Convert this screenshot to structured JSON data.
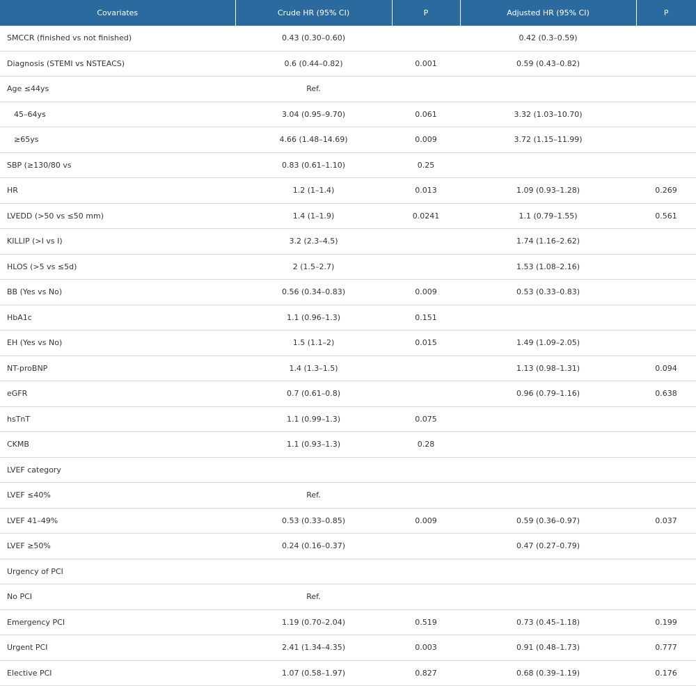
{
  "header": {
    "covariates": "Covariates",
    "crude": "Crude HR (95% CI)",
    "p1": "P",
    "adjusted": "Adjusted HR (95% CI)",
    "p2": "P"
  },
  "rows": [
    {
      "label": "SMCCR (finished vs not finished)",
      "crude": "0.43 (0.30–0.60)",
      "p1": "",
      "adjusted": "0.42 (0.3–0.59)",
      "p2": "",
      "indent": false
    },
    {
      "label": "Diagnosis (STEMI vs NSTEACS)",
      "crude": "0.6 (0.44–0.82)",
      "p1": "0.001",
      "adjusted": "0.59 (0.43–0.82)",
      "p2": "",
      "indent": false
    },
    {
      "label": "Age ≤44ys",
      "crude": "Ref.",
      "p1": "",
      "adjusted": "",
      "p2": "",
      "indent": false
    },
    {
      "label": "45–64ys",
      "crude": "3.04 (0.95–9.70)",
      "p1": "0.061",
      "adjusted": "3.32 (1.03–10.70)",
      "p2": "",
      "indent": true
    },
    {
      "label": "≥65ys",
      "crude": "4.66 (1.48–14.69)",
      "p1": "0.009",
      "adjusted": "3.72 (1.15–11.99)",
      "p2": "",
      "indent": true
    },
    {
      "label": "SBP (≥130/80 vs",
      "crude": "0.83 (0.61–1.10)",
      "p1": "0.25",
      "adjusted": "",
      "p2": "",
      "indent": false
    },
    {
      "label": "HR",
      "crude": "1.2 (1–1.4)",
      "p1": "0.013",
      "adjusted": "1.09 (0.93–1.28)",
      "p2": "0.269",
      "indent": false
    },
    {
      "label": "LVEDD (>50 vs ≤50 mm)",
      "crude": "1.4 (1–1.9)",
      "p1": "0.0241",
      "adjusted": "1.1 (0.79–1.55)",
      "p2": "0.561",
      "indent": false
    },
    {
      "label": "KILLIP (>I vs I)",
      "crude": "3.2 (2.3–4.5)",
      "p1": "",
      "adjusted": "1.74 (1.16–2.62)",
      "p2": "",
      "indent": false
    },
    {
      "label": "HLOS (>5 vs ≤5d)",
      "crude": "2 (1.5–2.7)",
      "p1": "",
      "adjusted": "1.53 (1.08–2.16)",
      "p2": "",
      "indent": false
    },
    {
      "label": "BB (Yes vs No)",
      "crude": "0.56 (0.34–0.83)",
      "p1": "0.009",
      "adjusted": "0.53 (0.33–0.83)",
      "p2": "",
      "indent": false
    },
    {
      "label": "HbA1c",
      "crude": "1.1 (0.96–1.3)",
      "p1": "0.151",
      "adjusted": "",
      "p2": "",
      "indent": false
    },
    {
      "label": "EH (Yes vs No)",
      "crude": "1.5 (1.1–2)",
      "p1": "0.015",
      "adjusted": "1.49 (1.09–2.05)",
      "p2": "",
      "indent": false
    },
    {
      "label": "NT-proBNP",
      "crude": "1.4 (1.3–1.5)",
      "p1": "",
      "adjusted": "1.13 (0.98–1.31)",
      "p2": "0.094",
      "indent": false
    },
    {
      "label": "eGFR",
      "crude": "0.7 (0.61–0.8)",
      "p1": "",
      "adjusted": "0.96 (0.79–1.16)",
      "p2": "0.638",
      "indent": false
    },
    {
      "label": "hsTnT",
      "crude": "1.1 (0.99–1.3)",
      "p1": "0.075",
      "adjusted": "",
      "p2": "",
      "indent": false
    },
    {
      "label": "CKMB",
      "crude": "1.1 (0.93–1.3)",
      "p1": "0.28",
      "adjusted": "",
      "p2": "",
      "indent": false
    },
    {
      "label": "LVEF category",
      "crude": "",
      "p1": "",
      "adjusted": "",
      "p2": "",
      "indent": false
    },
    {
      "label": "LVEF ≤40%",
      "crude": "Ref.",
      "p1": "",
      "adjusted": "",
      "p2": "",
      "indent": false
    },
    {
      "label": "LVEF 41–49%",
      "crude": "0.53 (0.33–0.85)",
      "p1": "0.009",
      "adjusted": "0.59 (0.36–0.97)",
      "p2": "0.037",
      "indent": false
    },
    {
      "label": "LVEF ≥50%",
      "crude": "0.24 (0.16–0.37)",
      "p1": "",
      "adjusted": "0.47 (0.27–0.79)",
      "p2": "",
      "indent": false
    },
    {
      "label": "Urgency of PCI",
      "crude": "",
      "p1": "",
      "adjusted": "",
      "p2": "",
      "indent": false
    },
    {
      "label": "No PCI",
      "crude": "Ref.",
      "p1": "",
      "adjusted": "",
      "p2": "",
      "indent": false
    },
    {
      "label": "Emergency PCI",
      "crude": "1.19 (0.70–2.04)",
      "p1": "0.519",
      "adjusted": "0.73 (0.45–1.18)",
      "p2": "0.199",
      "indent": false
    },
    {
      "label": "Urgent PCI",
      "crude": "2.41 (1.34–4.35)",
      "p1": "0.003",
      "adjusted": "0.91 (0.48–1.73)",
      "p2": "0.777",
      "indent": false
    },
    {
      "label": "Elective PCI",
      "crude": "1.07 (0.58–1.97)",
      "p1": "0.827",
      "adjusted": "0.68 (0.39–1.19)",
      "p2": "0.176",
      "indent": false
    }
  ]
}
